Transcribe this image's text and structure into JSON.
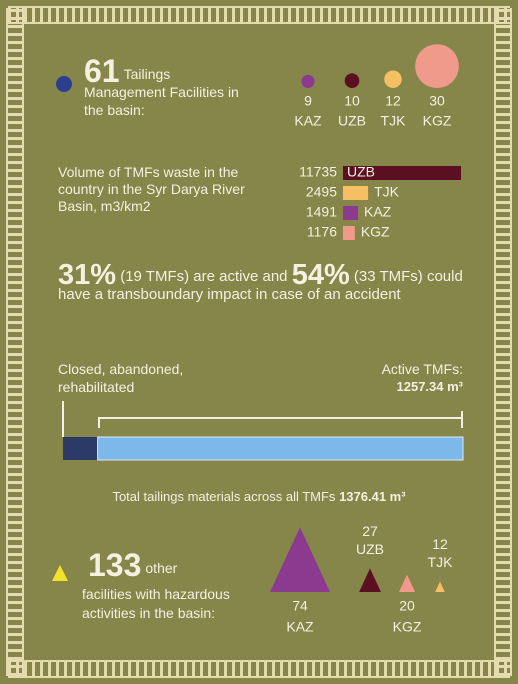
{
  "tmf": {
    "count": 61,
    "label": "Tailings Management Facilities in the basin:",
    "countries": [
      {
        "name": "KAZ",
        "value": 9,
        "color": "#8b3a8f"
      },
      {
        "name": "UZB",
        "value": 10,
        "color": "#5a1020"
      },
      {
        "name": "TJK",
        "value": 12,
        "color": "#f6bf62"
      },
      {
        "name": "KGZ",
        "value": 30,
        "color": "#f09a8c"
      }
    ]
  },
  "volume": {
    "title": "Volume of TMFs waste in the country in the Syr Darya River Basin, m3/km2",
    "bars": [
      {
        "name": "UZB",
        "value": 11735,
        "color": "#5a1020"
      },
      {
        "name": "TJK",
        "value": 2495,
        "color": "#f6bf62"
      },
      {
        "name": "KAZ",
        "value": 1491,
        "color": "#8b3a8f"
      },
      {
        "name": "KGZ",
        "value": 1176,
        "color": "#f09a8c"
      }
    ]
  },
  "status": {
    "active_pct": {
      "value": 31,
      "label": "31%"
    },
    "active_text": "(19 TMFs) are active and",
    "impact_pct": {
      "value": 54,
      "label": "54%"
    },
    "impact_text": "(33 TMFs) could have a transboundary impact in case of an accident"
  },
  "materials": {
    "closed_label": "Closed, abandoned, rehabilitated",
    "active_label": "Active TMFs:",
    "active": {
      "value": 1257.34,
      "label": "1257.34 m³"
    },
    "total_label": "Total tailings materials across all TMFs",
    "total": {
      "value": 1376.41,
      "label": "1376.41 m³"
    }
  },
  "hazard": {
    "count": 133,
    "label_lead": "other",
    "label": "facilities with hazardous activities in the basin:",
    "countries": [
      {
        "name": "KAZ",
        "value": 74,
        "color": "#8b3a8f"
      },
      {
        "name": "UZB",
        "value": 27,
        "color": "#5a1020"
      },
      {
        "name": "KGZ",
        "value": 20,
        "color": "#f09a8c"
      },
      {
        "name": "TJK",
        "value": 12,
        "color": "#f6bf62"
      }
    ]
  }
}
